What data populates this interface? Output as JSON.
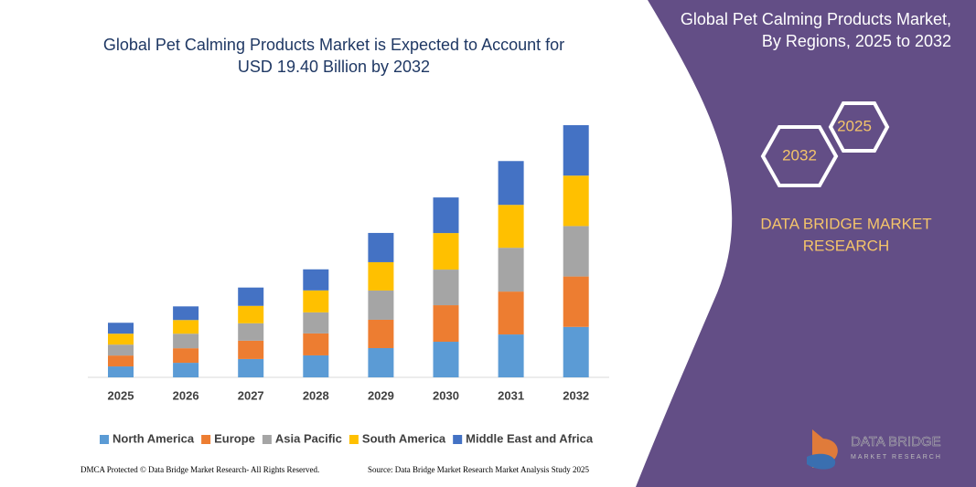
{
  "chart_data": {
    "type": "stacked_bar",
    "title": "Global Pet Calming Products Market is Expected to Account for USD 19.40 Billion by 2032",
    "categories": [
      "2025",
      "2026",
      "2027",
      "2028",
      "2029",
      "2030",
      "2031",
      "2032"
    ],
    "series": [
      {
        "name": "North America",
        "color": "#5b9bd5",
        "values": [
          0.84,
          1.12,
          1.41,
          1.69,
          2.25,
          2.74,
          3.3,
          3.88
        ]
      },
      {
        "name": "Europe",
        "color": "#ed7d31",
        "values": [
          0.84,
          1.12,
          1.41,
          1.69,
          2.18,
          2.81,
          3.3,
          3.88
        ]
      },
      {
        "name": "Asia Pacific",
        "color": "#a5a5a5",
        "values": [
          0.84,
          1.12,
          1.34,
          1.62,
          2.25,
          2.74,
          3.37,
          3.88
        ]
      },
      {
        "name": "South America",
        "color": "#ffc000",
        "values": [
          0.84,
          1.05,
          1.34,
          1.69,
          2.18,
          2.81,
          3.3,
          3.88
        ]
      },
      {
        "name": "Middle East and Africa",
        "color": "#4472c4",
        "values": [
          0.84,
          1.05,
          1.41,
          1.62,
          2.25,
          2.74,
          3.37,
          3.88
        ]
      }
    ],
    "legend": "bottom"
  },
  "panel": {
    "title_line1": "Global Pet Calming Products Market,",
    "title_line2": "By Regions, 2025 to 2032",
    "hex_front": "2032",
    "hex_back": "2025",
    "brand_line1": "DATA BRIDGE MARKET",
    "brand_line2": "RESEARCH",
    "logo_line1": "DATA BRIDGE",
    "logo_line2": "MARKET RESEARCH"
  },
  "footer": {
    "left": "DMCA Protected © Data Bridge Market Research- All Rights Reserved.",
    "right": "Source: Data Bridge Market Research Market Analysis Study 2025"
  }
}
